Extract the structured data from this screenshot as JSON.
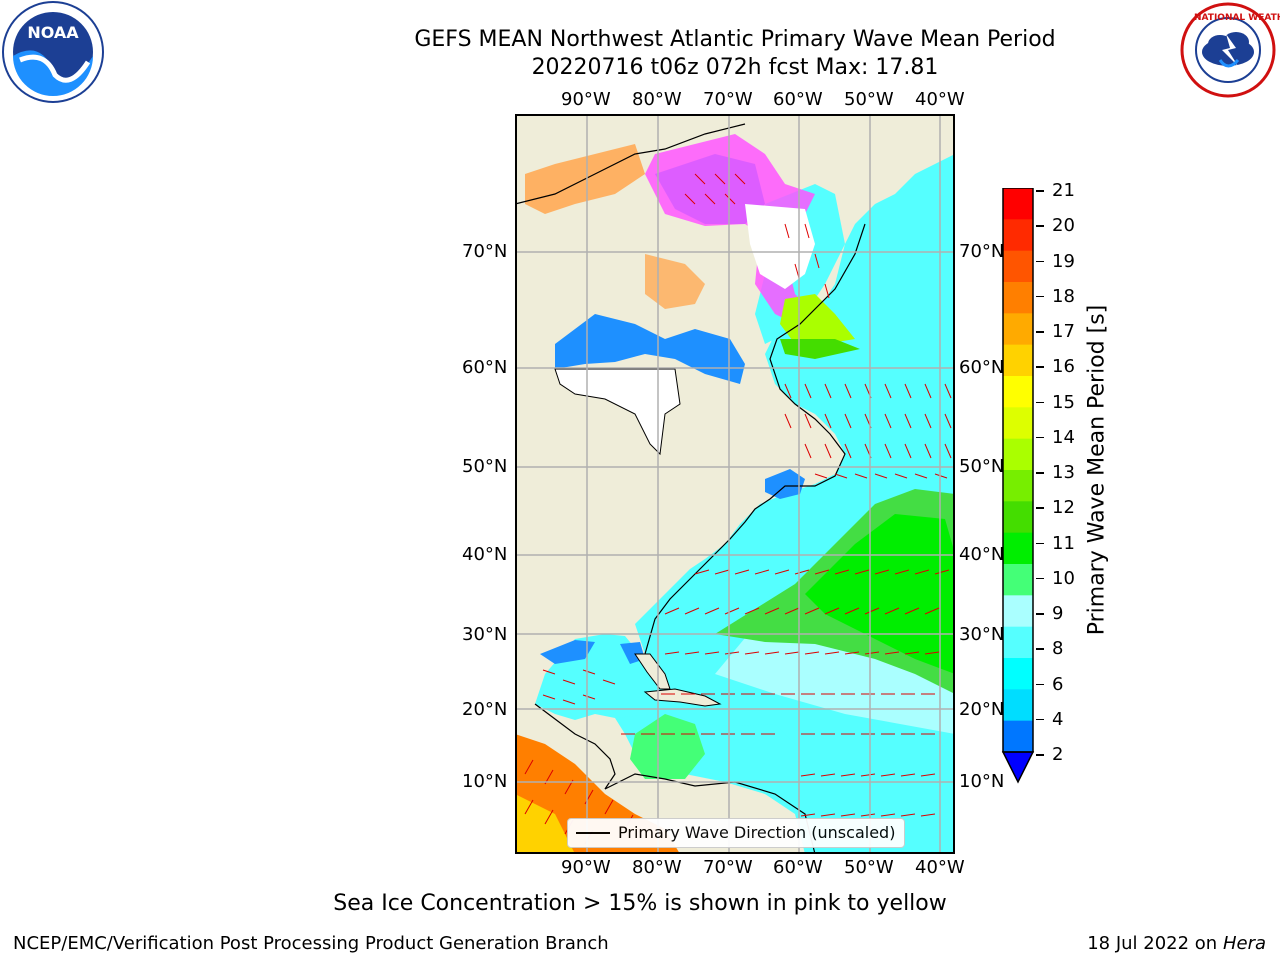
{
  "title_line1": "GEFS MEAN Northwest Atlantic Primary Wave Mean Period",
  "title_line2": "20220716 t06z 072h fcst   Max: 17.81",
  "logos": {
    "left": {
      "name": "noaa-logo",
      "text": "NOAA"
    },
    "right": {
      "name": "nws-logo",
      "text": "NATIONAL WEATHER SERVICE"
    }
  },
  "lon_labels": [
    "90°W",
    "80°W",
    "70°W",
    "60°W",
    "50°W",
    "40°W"
  ],
  "lat_labels": [
    "70°N",
    "60°N",
    "50°N",
    "40°N",
    "30°N",
    "20°N",
    "10°N"
  ],
  "legend_label": "Primary Wave Direction (unscaled)",
  "colorbar": {
    "label": "Primary Wave Mean Period [s]",
    "ticks": [
      "21",
      "20",
      "19",
      "18",
      "17",
      "16",
      "15",
      "14",
      "13",
      "12",
      "11",
      "10",
      "9",
      "8",
      "6",
      "4",
      "2"
    ],
    "colors": [
      "#ff0000",
      "#ff2a00",
      "#ff5500",
      "#ff7f00",
      "#ffaa00",
      "#ffd200",
      "#ffff00",
      "#ddff00",
      "#aaff00",
      "#77ee00",
      "#44dd00",
      "#00ee00",
      "#44ff77",
      "#aaffff",
      "#55ffff",
      "#00ffff",
      "#00ddff",
      "#0077ff"
    ],
    "extend_color": "#0000ff"
  },
  "ice_note": "Sea Ice Concentration > 15% is shown in pink to yellow",
  "footer_left": "NCEP/EMC/Verification Post Processing Product Generation Branch",
  "footer_date": "18 Jul 2022 on ",
  "footer_host": "Hera",
  "colors": {
    "land": "#efedd9",
    "grid": "#b0b0b0",
    "arrow": "#dd0000",
    "ocean_low": "#55ffff",
    "ocean_mid": "#aaffff",
    "ocean_green": "#00ee00"
  }
}
